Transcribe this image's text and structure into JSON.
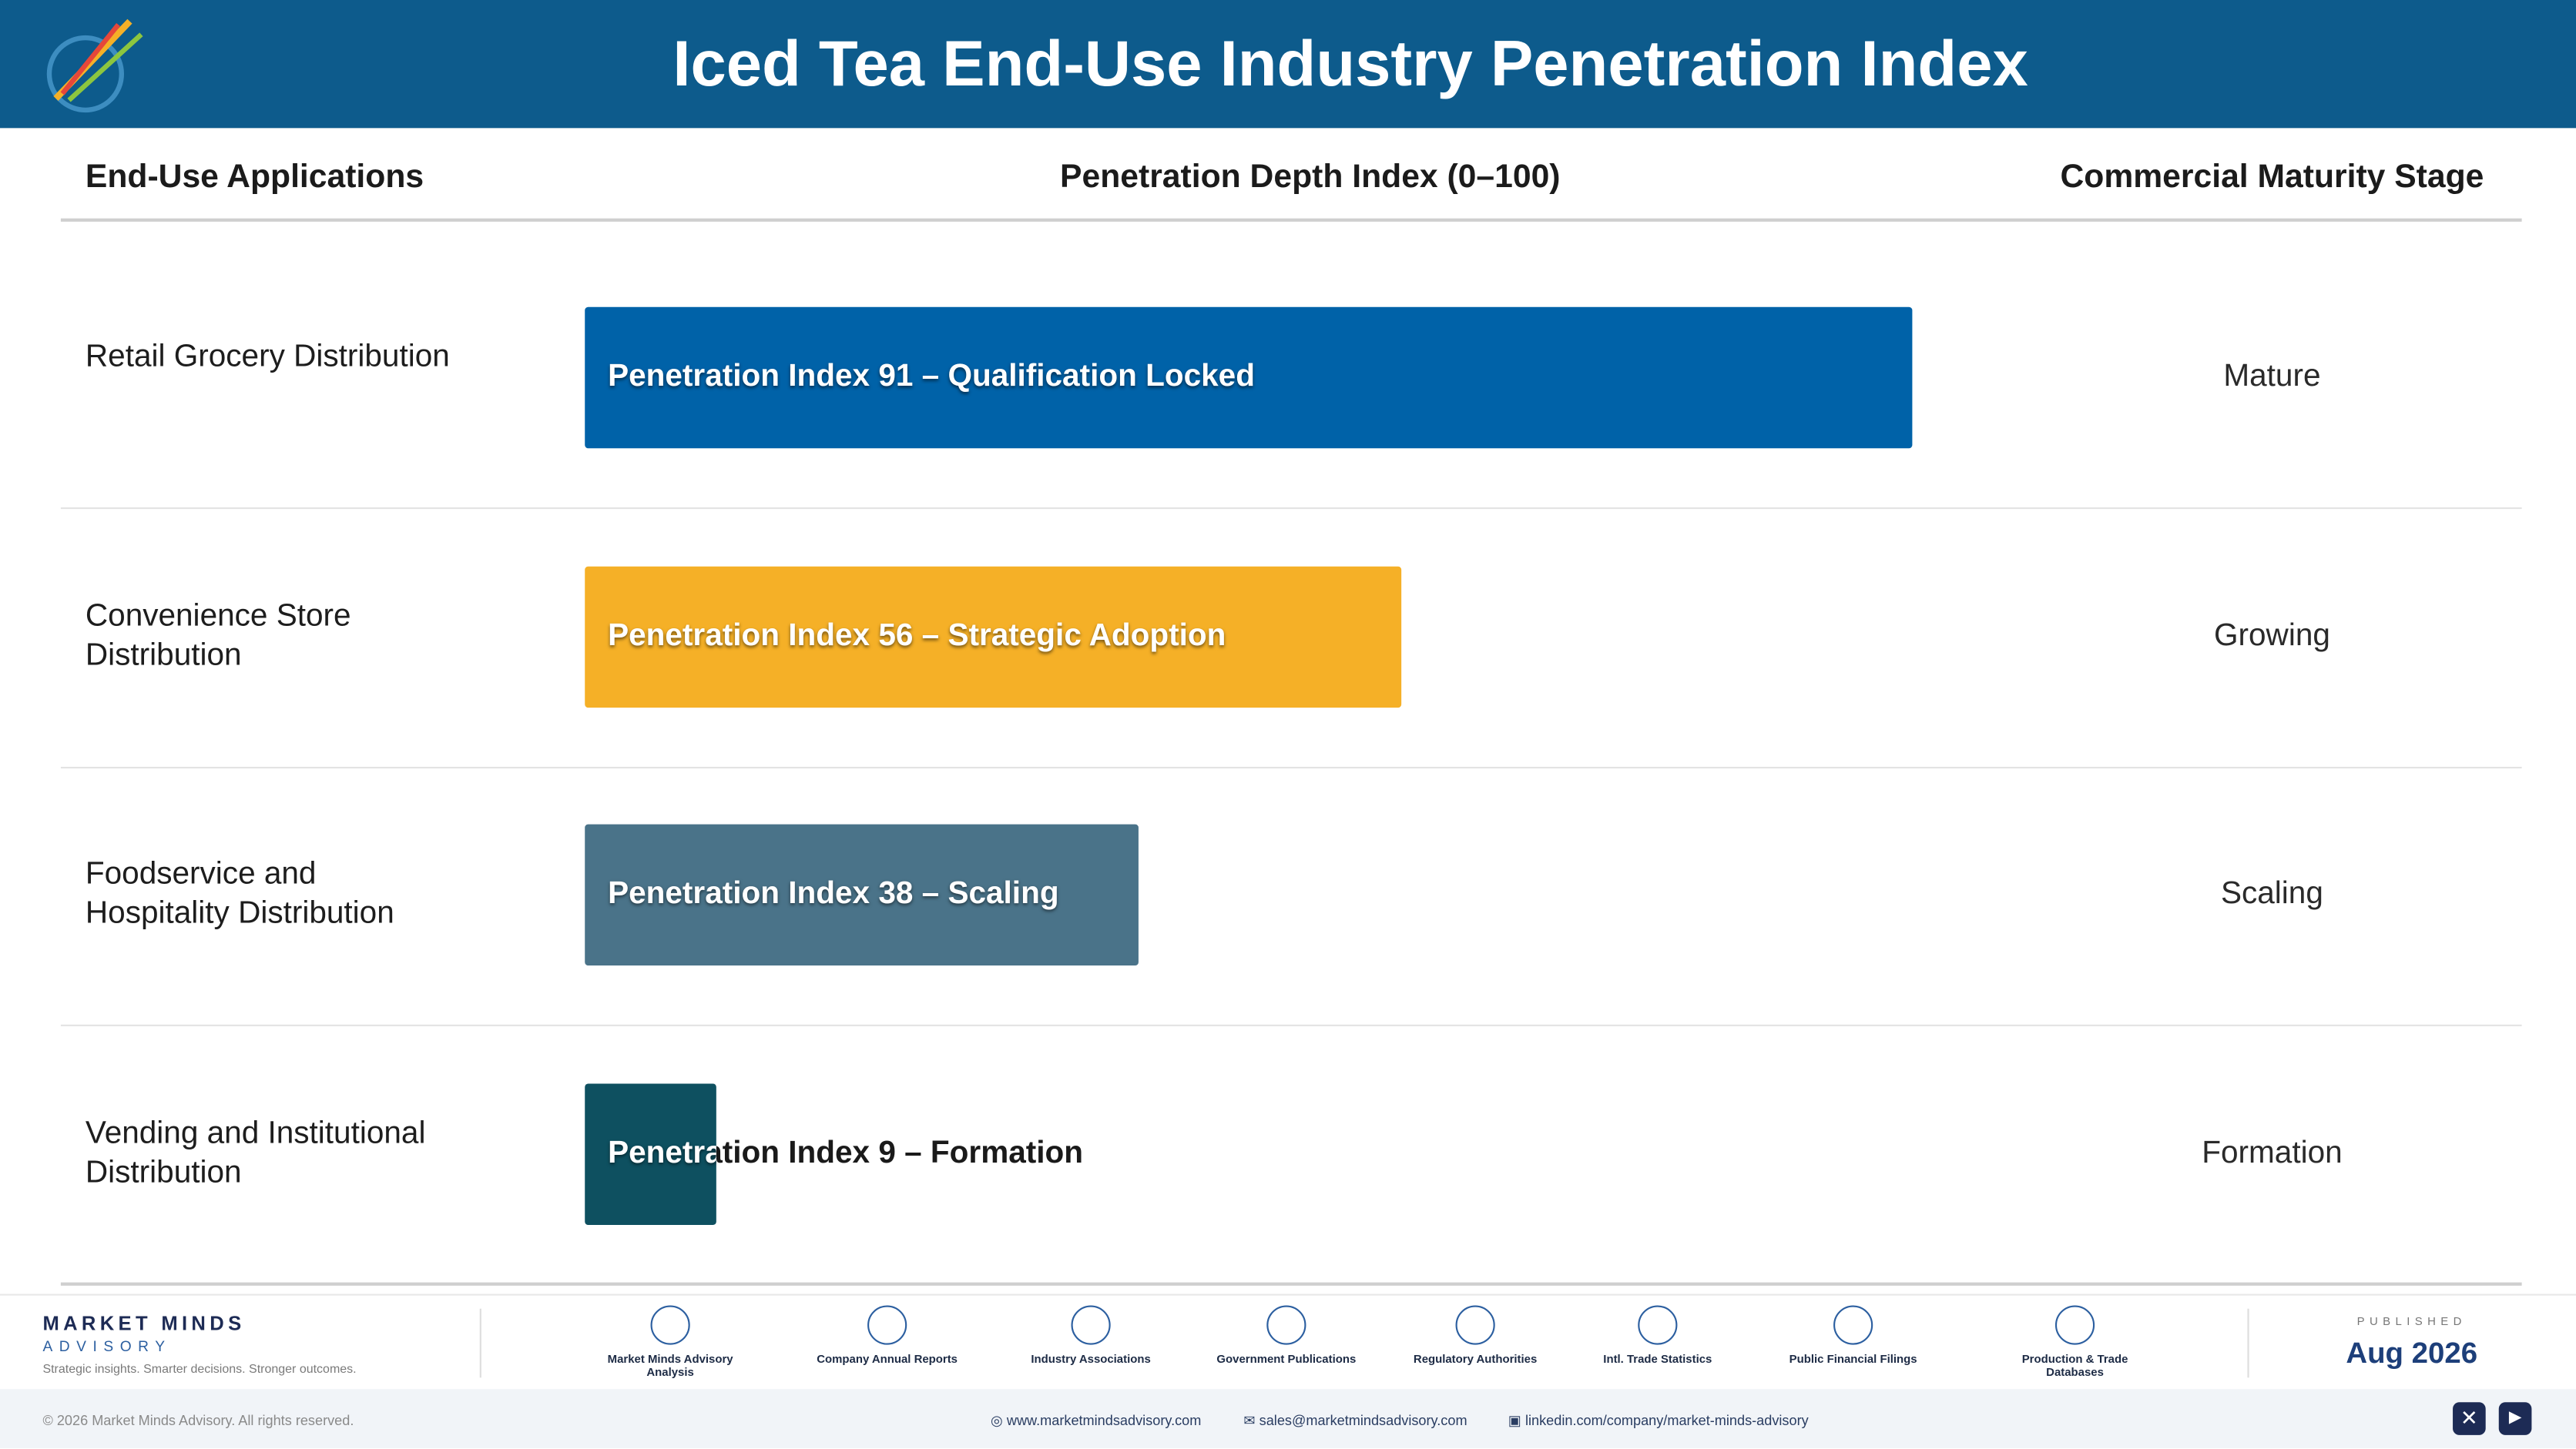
{
  "header": {
    "title": "Iced Tea End-Use Industry Penetration Index"
  },
  "chart_data": {
    "type": "bar",
    "orientation": "horizontal",
    "column_headers": [
      "End-Use Applications",
      "Penetration Depth Index (0–100)",
      "Commercial Maturity Stage"
    ],
    "categories": [
      "Retail Grocery Distribution",
      "Convenience Store Distribution",
      "Foodservice and Hospitality Distribution",
      "Vending and Institutional Distribution"
    ],
    "values": [
      91,
      56,
      38,
      9
    ],
    "value_labels": [
      "Penetration Index 91 – Qualification Locked",
      "Penetration Index 56 – Strategic Adoption",
      "Penetration Index 38 – Scaling",
      "Penetration Index 9 – Formation"
    ],
    "stages": [
      "Mature",
      "Growing",
      "Scaling",
      "Formation"
    ],
    "colors": [
      "#0062a8",
      "#f5b027",
      "#4a7389",
      "#0e5060"
    ],
    "xlim": [
      0,
      100
    ]
  },
  "footer": {
    "brand": "MARKET MINDS",
    "brand_sub": "ADVISORY",
    "tagline": "Strategic insights. Smarter decisions. Stronger outcomes.",
    "sources": [
      "Market Minds Advisory Analysis",
      "Company Annual Reports",
      "Industry Associations",
      "Government Publications",
      "Regulatory Authorities",
      "Intl. Trade Statistics",
      "Public Financial Filings",
      "Production & Trade Databases"
    ],
    "published_label": "PUBLISHED",
    "published_date": "Aug 2026",
    "copyright": "© 2026 Market Minds Advisory. All rights reserved.",
    "links": [
      "www.marketmindsadvisory.com",
      "sales@marketmindsadvisory.com",
      "linkedin.com/company/market-minds-advisory"
    ]
  }
}
